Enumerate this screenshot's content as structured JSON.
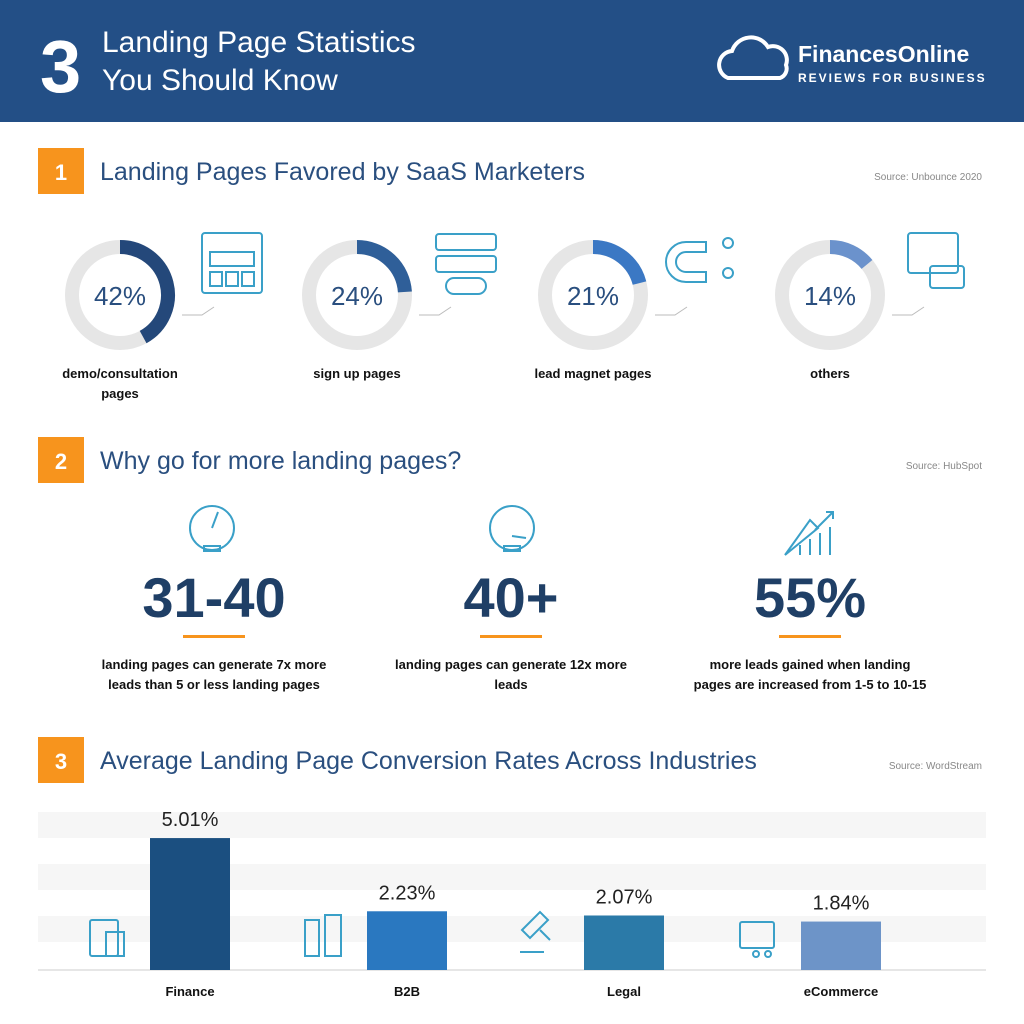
{
  "header": {
    "number": "3",
    "title_lines": [
      "Landing Page Statistics",
      "You Should Know"
    ],
    "brand": "FinancesOnline",
    "tagline": "REVIEWS FOR BUSINESS"
  },
  "sections": [
    {
      "number": "1",
      "title": "Landing Pages Favored by SaaS Marketers",
      "source": "Source: Unbounce 2020"
    },
    {
      "number": "2",
      "title": "Why go for more landing pages?",
      "source": "Source: HubSpot",
      "stats": [
        {
          "value": "31-40",
          "text": "landing pages can generate 7x more leads than 5 or less landing pages"
        },
        {
          "value": "40+",
          "text": "landing pages can generate 12x more leads"
        },
        {
          "value": "55%",
          "text": "more leads gained when landing pages are increased from 1-5 to 10-15"
        }
      ]
    },
    {
      "number": "3",
      "title": "Average Landing Page Conversion Rates Across Industries",
      "source": "Source:  WordStream"
    }
  ],
  "chart_data": [
    {
      "type": "donut",
      "categories": [
        "demo/consultation pages",
        "sign up pages",
        "lead magnet pages",
        "others"
      ],
      "values": [
        42,
        24,
        21,
        14
      ],
      "value_labels": [
        "42%",
        "24%",
        "21%",
        "14%"
      ],
      "colors": [
        "#24487a",
        "#2f5f99",
        "#3b78c4",
        "#6b92cc"
      ]
    },
    {
      "type": "bar",
      "categories": [
        "Finance",
        "B2B",
        "Legal",
        "eCommerce"
      ],
      "values": [
        5.01,
        2.23,
        2.07,
        1.84
      ],
      "value_labels": [
        "5.01%",
        "2.23%",
        "2.07%",
        "1.84%"
      ],
      "colors": [
        "#1b4f80",
        "#2a78c0",
        "#2b7aa8",
        "#6d94c8"
      ],
      "ylim": [
        0,
        6
      ]
    }
  ]
}
